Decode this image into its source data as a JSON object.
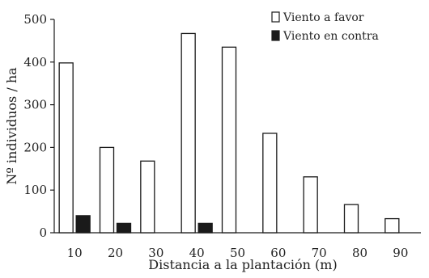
{
  "chart_data": {
    "type": "bar",
    "title": "",
    "xlabel": "Distancia a la plantación (m)",
    "ylabel": "Nº individuos / ha",
    "ylim": [
      0,
      500
    ],
    "yticks": [
      "0",
      "100",
      "200",
      "300",
      "400",
      "500"
    ],
    "categories": [
      "10",
      "20",
      "30",
      "40",
      "50",
      "60",
      "70",
      "80",
      "90"
    ],
    "series": [
      {
        "name": "Viento a favor",
        "fill": "#ffffff",
        "stroke": "#1a1a1a",
        "values": [
          398,
          200,
          168,
          467,
          435,
          233,
          131,
          66,
          33
        ]
      },
      {
        "name": "Viento en contra",
        "fill": "#1a1a1a",
        "stroke": "#1a1a1a",
        "values": [
          40,
          22,
          0,
          22,
          0,
          0,
          0,
          0,
          0
        ]
      }
    ],
    "grid": false,
    "legend_position": "top-right"
  }
}
